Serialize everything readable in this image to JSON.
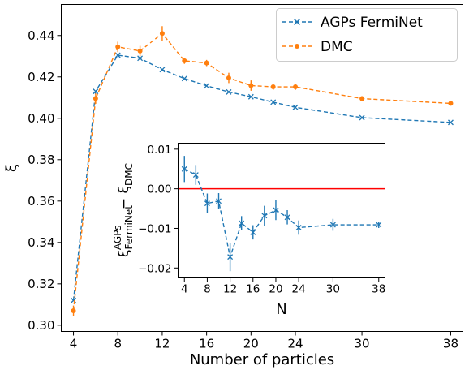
{
  "chart_data": [
    {
      "type": "line",
      "xlabel": "Number of particles",
      "ylabel": "ξ",
      "xlim": [
        2.9,
        39.1
      ],
      "ylim": [
        0.297,
        0.455
      ],
      "xticks": [
        4,
        8,
        12,
        16,
        20,
        24,
        30,
        38
      ],
      "yticks": [
        0.3,
        0.32,
        0.34,
        0.36,
        0.38,
        0.4,
        0.42,
        0.44
      ],
      "ytick_labels": [
        "0.30",
        "0.32",
        "0.34",
        "0.36",
        "0.38",
        "0.40",
        "0.42",
        "0.44"
      ],
      "legend": {
        "position": "top-right"
      },
      "series": [
        {
          "name": "AGPs FermiNet",
          "color": "#1f77b4",
          "marker": "x",
          "linestyle": "dashed",
          "x": [
            4,
            6,
            8,
            10,
            12,
            14,
            16,
            18,
            20,
            22,
            24,
            30,
            38
          ],
          "y": [
            0.312,
            0.413,
            0.4305,
            0.429,
            0.4235,
            0.4192,
            0.4157,
            0.4127,
            0.4104,
            0.4078,
            0.4053,
            0.4003,
            0.398
          ],
          "err": [
            0.0003,
            0.0003,
            0.0003,
            0.0003,
            0.0003,
            0.0003,
            0.0003,
            0.0003,
            0.0003,
            0.0003,
            0.0003,
            0.0003,
            0.0003
          ]
        },
        {
          "name": "DMC",
          "color": "#ff7f0e",
          "marker": "o",
          "linestyle": "dashed",
          "x": [
            4,
            6,
            8,
            10,
            12,
            14,
            16,
            18,
            20,
            22,
            24,
            30,
            38
          ],
          "y": [
            0.307,
            0.4095,
            0.4345,
            0.4325,
            0.441,
            0.4278,
            0.4267,
            0.4195,
            0.4158,
            0.4152,
            0.4152,
            0.4095,
            0.4072
          ],
          "err": [
            0.0025,
            0.0025,
            0.0025,
            0.0025,
            0.0035,
            0.0015,
            0.0015,
            0.0025,
            0.0025,
            0.0015,
            0.0015,
            0.0012,
            0.0008
          ]
        }
      ]
    },
    {
      "type": "line",
      "inset": true,
      "xlabel": "N",
      "ylabel_main": "ξ",
      "ylabel_super": "AGPs",
      "ylabel_sub": "FermiNet",
      "ylabel_rest": " − ξ",
      "ylabel_sub2": "DMC",
      "xlim": [
        2.9,
        39.1
      ],
      "ylim": [
        -0.0225,
        0.0115
      ],
      "xticks": [
        4,
        8,
        12,
        16,
        20,
        24,
        30,
        38
      ],
      "yticks": [
        0.01,
        0.0,
        -0.01,
        -0.02
      ],
      "ytick_labels": [
        "0.01",
        "0.00",
        "−0.01",
        "−0.02"
      ],
      "reference_line": {
        "y": 0.0,
        "color": "#ff0000"
      },
      "series": [
        {
          "color": "#1f77b4",
          "marker": "x",
          "linestyle": "dashed",
          "x": [
            4,
            6,
            8,
            10,
            12,
            14,
            16,
            18,
            20,
            22,
            24,
            30,
            38
          ],
          "y": [
            0.005,
            0.0035,
            -0.0037,
            -0.0031,
            -0.0172,
            -0.0087,
            -0.011,
            -0.0068,
            -0.0054,
            -0.0072,
            -0.0098,
            -0.0091,
            -0.0091
          ],
          "err": [
            0.0033,
            0.0025,
            0.0025,
            0.002,
            0.0036,
            0.0018,
            0.0018,
            0.0025,
            0.0025,
            0.0018,
            0.0018,
            0.0015,
            0.0008
          ]
        }
      ]
    }
  ]
}
